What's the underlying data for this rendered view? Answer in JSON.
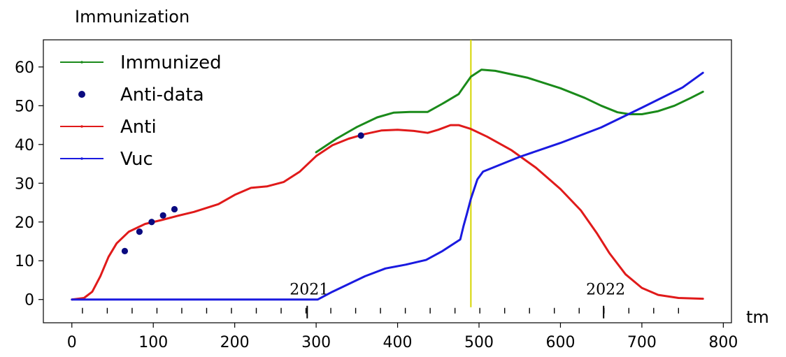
{
  "chart_data": {
    "type": "line",
    "title": "Immunization",
    "xlabel": "tm",
    "ylabel": "",
    "xlim": [
      -35,
      810
    ],
    "ylim": [
      -6,
      67
    ],
    "xticks": [
      0,
      100,
      200,
      300,
      400,
      500,
      600,
      700,
      800
    ],
    "yticks": [
      0,
      10,
      20,
      30,
      40,
      50,
      60
    ],
    "grid": false,
    "legend": "top-left",
    "annotations": {
      "vertical_line_x": 490,
      "vertical_line_color": "#d6d600",
      "year_labels": [
        {
          "text": "2021",
          "x": 289
        },
        {
          "text": "2022",
          "x": 653
        }
      ],
      "minor_tick_start": 13,
      "minor_tick_step": 30.5
    },
    "series": [
      {
        "name": "Immunized",
        "kind": "line",
        "color": "#1a8a1a",
        "points": [
          [
            300,
            38
          ],
          [
            325,
            41.5
          ],
          [
            350,
            44.5
          ],
          [
            375,
            47
          ],
          [
            395,
            48.2
          ],
          [
            415,
            48.4
          ],
          [
            437,
            48.4
          ],
          [
            455,
            50.5
          ],
          [
            475,
            53
          ],
          [
            480,
            54.5
          ],
          [
            490,
            57.5
          ],
          [
            503,
            59.3
          ],
          [
            520,
            59
          ],
          [
            560,
            57.2
          ],
          [
            600,
            54.5
          ],
          [
            630,
            52
          ],
          [
            650,
            50
          ],
          [
            670,
            48.3
          ],
          [
            685,
            47.8
          ],
          [
            700,
            47.8
          ],
          [
            720,
            48.6
          ],
          [
            740,
            50
          ],
          [
            760,
            52
          ],
          [
            775,
            53.6
          ]
        ]
      },
      {
        "name": "Anti-data",
        "kind": "scatter",
        "color": "#0a0a80",
        "points": [
          [
            65,
            12.5
          ],
          [
            83,
            17.5
          ],
          [
            98,
            20
          ],
          [
            112,
            21.7
          ],
          [
            126,
            23.3
          ],
          [
            355,
            42.3
          ]
        ]
      },
      {
        "name": "Anti",
        "kind": "line",
        "color": "#e01a1a",
        "points": [
          [
            0,
            0
          ],
          [
            15,
            0.4
          ],
          [
            25,
            2
          ],
          [
            35,
            6
          ],
          [
            45,
            11
          ],
          [
            55,
            14.5
          ],
          [
            70,
            17.5
          ],
          [
            90,
            19.5
          ],
          [
            110,
            20.5
          ],
          [
            130,
            21.6
          ],
          [
            150,
            22.6
          ],
          [
            180,
            24.6
          ],
          [
            200,
            27
          ],
          [
            220,
            28.8
          ],
          [
            240,
            29.2
          ],
          [
            260,
            30.3
          ],
          [
            280,
            33
          ],
          [
            300,
            37
          ],
          [
            320,
            39.8
          ],
          [
            340,
            41.5
          ],
          [
            360,
            42.7
          ],
          [
            380,
            43.6
          ],
          [
            400,
            43.8
          ],
          [
            420,
            43.5
          ],
          [
            437,
            43
          ],
          [
            450,
            43.8
          ],
          [
            465,
            45
          ],
          [
            475,
            45
          ],
          [
            490,
            44
          ],
          [
            510,
            42
          ],
          [
            540,
            38.5
          ],
          [
            570,
            34
          ],
          [
            600,
            28.5
          ],
          [
            625,
            23
          ],
          [
            645,
            17
          ],
          [
            660,
            12
          ],
          [
            680,
            6.5
          ],
          [
            700,
            3
          ],
          [
            720,
            1.2
          ],
          [
            745,
            0.4
          ],
          [
            775,
            0.2
          ]
        ]
      },
      {
        "name": "Vuc",
        "kind": "line",
        "color": "#1a1ae0",
        "points": [
          [
            0,
            0
          ],
          [
            100,
            0
          ],
          [
            200,
            0
          ],
          [
            302,
            0
          ],
          [
            320,
            2
          ],
          [
            340,
            4
          ],
          [
            360,
            6
          ],
          [
            385,
            8
          ],
          [
            410,
            9
          ],
          [
            435,
            10.2
          ],
          [
            455,
            12.5
          ],
          [
            477,
            15.5
          ],
          [
            481,
            19
          ],
          [
            485,
            22
          ],
          [
            490,
            26
          ],
          [
            498,
            31
          ],
          [
            505,
            33
          ],
          [
            550,
            36.8
          ],
          [
            600,
            40.4
          ],
          [
            650,
            44.4
          ],
          [
            700,
            49.5
          ],
          [
            750,
            54.7
          ],
          [
            775,
            58.5
          ]
        ]
      }
    ]
  }
}
